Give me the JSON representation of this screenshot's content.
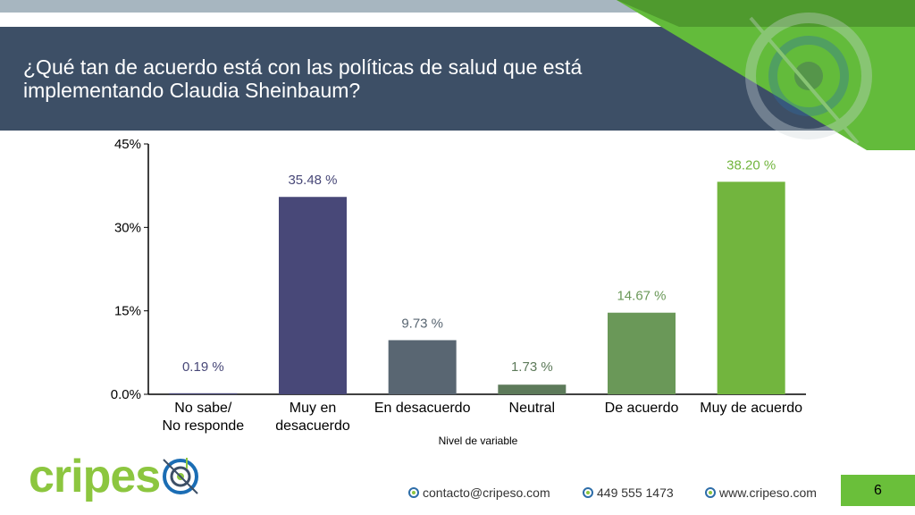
{
  "slide": {
    "title": "¿Qué tan de acuerdo está con las políticas de salud que está implementando Claudia Sheinbaum?",
    "page_number": "6"
  },
  "brand": {
    "logo_text_green": "cripes",
    "logo_text_blue": "",
    "accent_green": "#6abf3a",
    "header_color": "#3d4f66"
  },
  "footer": {
    "email": "contacto@cripeso.com",
    "phone": "449 555 1473",
    "website": "www.cripeso.com",
    "icon": "globe-icon"
  },
  "chart_data": {
    "type": "bar",
    "categories": [
      "No sabe/\nNo responde",
      "Muy en\ndesacuerdo",
      "En desacuerdo",
      "Neutral",
      "De acuerdo",
      "Muy de acuerdo"
    ],
    "values": [
      0.19,
      35.48,
      9.73,
      1.73,
      14.67,
      38.2
    ],
    "value_labels": [
      "0.19 %",
      "35.48 %",
      "9.73 %",
      "1.73 %",
      "14.67 %",
      "38.20 %"
    ],
    "bar_colors": [
      "#484878",
      "#484878",
      "#596672",
      "#5d7a5a",
      "#6a9858",
      "#72b53e"
    ],
    "label_colors": [
      "#484878",
      "#484878",
      "#596672",
      "#5d7a5a",
      "#6a9858",
      "#72b53e"
    ],
    "xlabel": "Nivel de variable",
    "ylabel": "",
    "ylim": [
      0,
      45
    ],
    "yticks": [
      0,
      15,
      30,
      45
    ],
    "ytick_labels": [
      "0.0%",
      "15%",
      "30%",
      "45%"
    ],
    "grid": false
  }
}
